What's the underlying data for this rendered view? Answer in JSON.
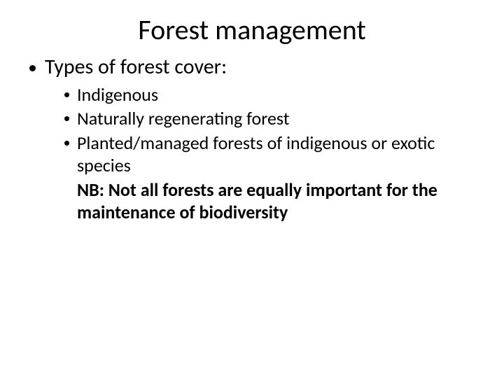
{
  "type": "infographic",
  "background_color": "#ffffff",
  "text_color": "#000000",
  "bullet_color": "#000000",
  "font_family": "Calibri",
  "title": {
    "text": "Forest management",
    "fontsize": 40,
    "weight": 400,
    "align": "center"
  },
  "level1_fontsize": 30,
  "level2_fontsize": 26,
  "note_fontsize": 26,
  "note_weight": 700,
  "content": {
    "main_point": "Types of forest cover:",
    "sub_points": [
      "Indigenous",
      "Naturally regenerating forest",
      "Planted/managed forests of indigenous or exotic species"
    ],
    "note": "NB: Not all forests are equally important for the maintenance of biodiversity"
  }
}
